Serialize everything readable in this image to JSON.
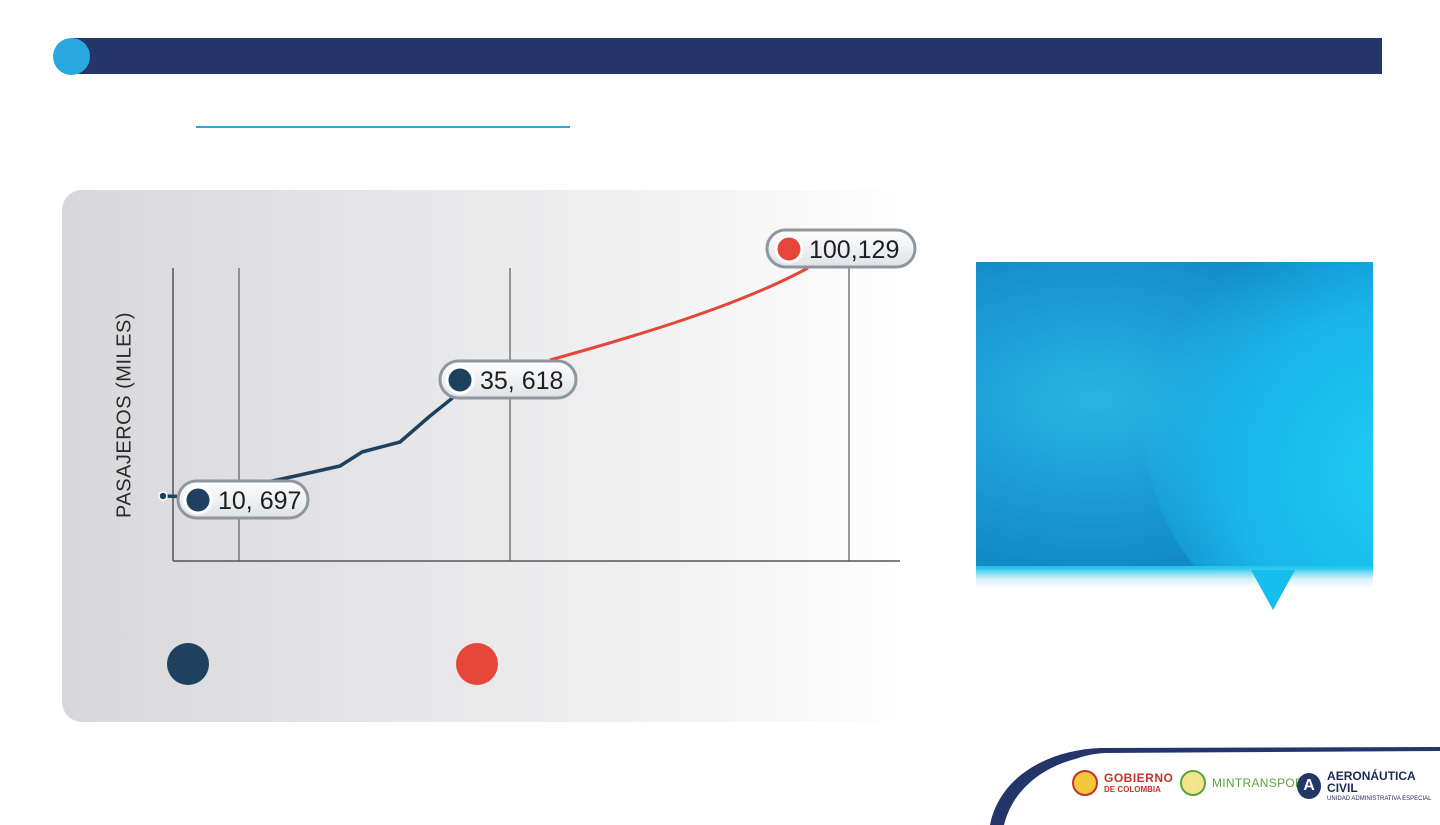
{
  "colors": {
    "header": "#243669",
    "accent": "#29a8e0",
    "series1": "#1e4160",
    "series2": "#e4463a",
    "panel": "#e3e3e5"
  },
  "chart_data": {
    "type": "line",
    "ylabel": "PASAJEROS (MILES)",
    "xlabel": "",
    "grid": "vertical lines",
    "series": [
      {
        "color": "#1e4160",
        "points": [
          {
            "label": "10, 697",
            "value": 10697
          },
          {
            "label": "35, 618",
            "value": 35618
          }
        ]
      },
      {
        "color": "#e4463a",
        "points": [
          {
            "label": "35, 618",
            "value": 35618
          },
          {
            "label": "100,129",
            "value": 100129
          }
        ]
      }
    ],
    "data_labels": [
      "10, 697",
      "35, 618",
      "100,129"
    ]
  },
  "footer": {
    "logos": [
      {
        "name": "gobierno",
        "line1": "GOBIERNO",
        "line2": "DE COLOMBIA"
      },
      {
        "name": "mintransporte",
        "line1": "MINTRANSPORTE"
      },
      {
        "name": "aeronautica",
        "line1": "AERONÁUTICA CIVIL",
        "line2": "UNIDAD ADMINISTRATIVA ESPECIAL",
        "mark": "A"
      }
    ]
  }
}
